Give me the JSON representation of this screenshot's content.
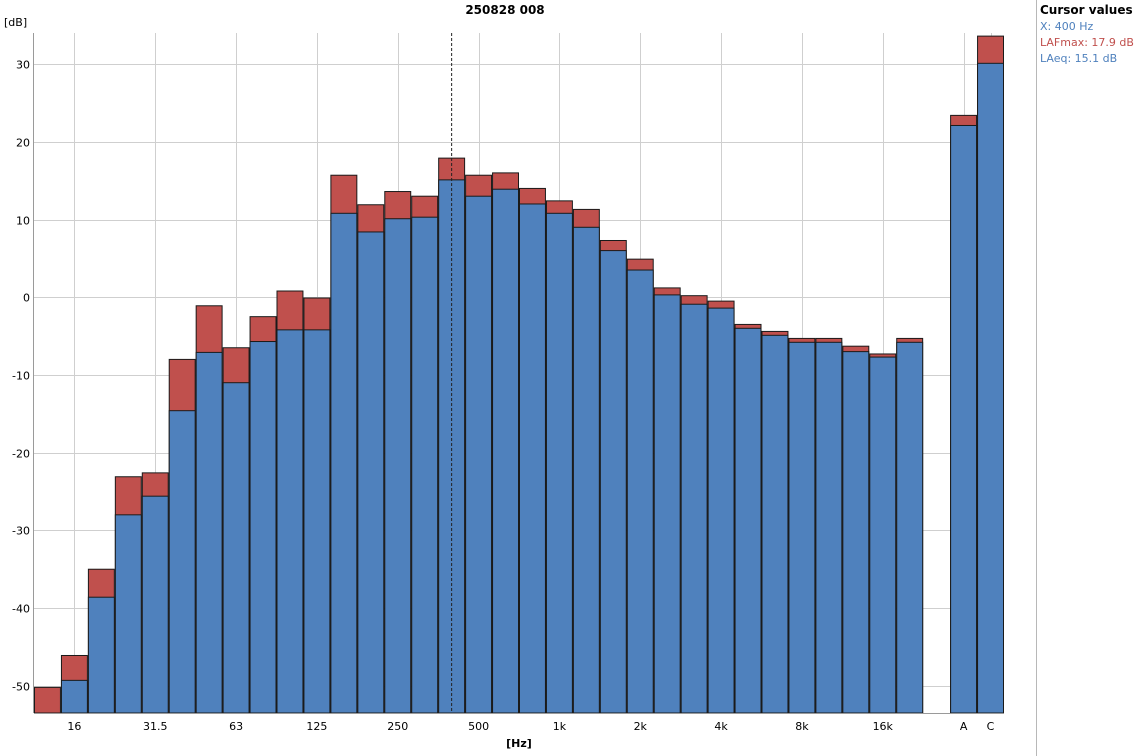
{
  "chart_data": {
    "type": "bar",
    "title": "250828 008",
    "ylabel": "[dB]",
    "xlabel": "[Hz]",
    "ylim": [
      -53.5,
      34
    ],
    "yticks": [
      -50,
      -40,
      -30,
      -20,
      -10,
      0,
      10,
      20,
      30
    ],
    "grid": true,
    "stacked_overlay": true,
    "categories": [
      "12.5",
      "16",
      "20",
      "25",
      "31.5",
      "40",
      "50",
      "63",
      "80",
      "100",
      "125",
      "160",
      "200",
      "250",
      "315",
      "400",
      "500",
      "630",
      "800",
      "1k",
      "1.25k",
      "1.6k",
      "2k",
      "2.5k",
      "3.15k",
      "4k",
      "5k",
      "6.3k",
      "8k",
      "10k",
      "12.5k",
      "16k",
      "20k",
      "A",
      "C"
    ],
    "tick_labels": [
      {
        "index": 1,
        "label": "16"
      },
      {
        "index": 4,
        "label": "31.5"
      },
      {
        "index": 7,
        "label": "63"
      },
      {
        "index": 10,
        "label": "125"
      },
      {
        "index": 13,
        "label": "250"
      },
      {
        "index": 16,
        "label": "500"
      },
      {
        "index": 19,
        "label": "1k"
      },
      {
        "index": 22,
        "label": "2k"
      },
      {
        "index": 25,
        "label": "4k"
      },
      {
        "index": 28,
        "label": "8k"
      },
      {
        "index": 31,
        "label": "16k"
      },
      {
        "index": 33,
        "label": "A"
      },
      {
        "index": 34,
        "label": "C"
      }
    ],
    "series": [
      {
        "name": "LAFmax",
        "color": "#c0504d",
        "values": [
          -50.2,
          -46.1,
          -35.0,
          -23.1,
          -22.6,
          -8.0,
          -1.1,
          -6.5,
          -2.5,
          0.8,
          -0.1,
          15.7,
          11.9,
          13.6,
          13.0,
          17.9,
          15.7,
          16.0,
          14.0,
          12.4,
          11.3,
          7.3,
          4.9,
          1.2,
          0.2,
          -0.5,
          -3.5,
          -4.4,
          -5.3,
          -5.3,
          -6.3,
          -7.3,
          -5.3,
          23.4,
          33.6
        ]
      },
      {
        "name": "LAeq",
        "color": "#4f81bd",
        "values": [
          -53.5,
          -49.3,
          -38.6,
          -28.0,
          -25.6,
          -14.6,
          -7.1,
          -11.0,
          -5.7,
          -4.2,
          -4.2,
          10.8,
          8.4,
          10.1,
          10.3,
          15.1,
          13.0,
          13.9,
          12.0,
          10.8,
          9.0,
          6.0,
          3.5,
          0.3,
          -0.9,
          -1.4,
          -4.0,
          -4.9,
          -5.8,
          -5.8,
          -7.0,
          -7.7,
          -5.8,
          22.1,
          30.1
        ]
      }
    ],
    "cursor": {
      "index": 15
    }
  },
  "cursor_panel": {
    "title": "Cursor values",
    "x_text": "X: 400 Hz",
    "lafmax_text": "LAFmax: 17.9 dB",
    "laeq_text": "LAeq: 15.1 dB",
    "x_color": "#4f81bd",
    "lafmax_color": "#c0504d",
    "laeq_color": "#4f81bd"
  }
}
